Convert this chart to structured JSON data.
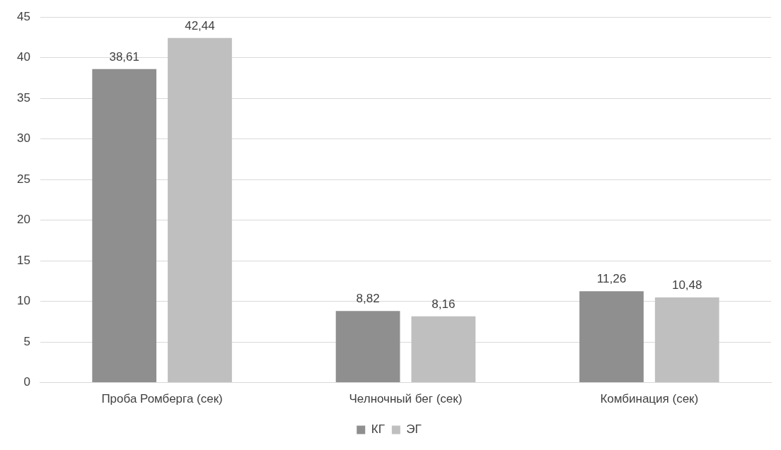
{
  "chart_data": {
    "type": "bar",
    "categories": [
      "Проба Ромберга (сек)",
      "Челночный бег (сек)",
      "Комбинация (сек)"
    ],
    "series": [
      {
        "name": "КГ",
        "color": "#8f8f8f",
        "values": [
          38.61,
          8.82,
          11.26
        ],
        "value_labels": [
          "38,61",
          "8,82",
          "11,26"
        ]
      },
      {
        "name": "ЭГ",
        "color": "#bfbfbf",
        "values": [
          42.44,
          8.16,
          10.48
        ],
        "value_labels": [
          "42,44",
          "8,16",
          "10,48"
        ]
      }
    ],
    "ylim": [
      0,
      45
    ],
    "yticks": [
      0,
      5,
      10,
      15,
      20,
      25,
      30,
      35,
      40,
      45
    ],
    "grid": "y",
    "legend": "bottom"
  }
}
